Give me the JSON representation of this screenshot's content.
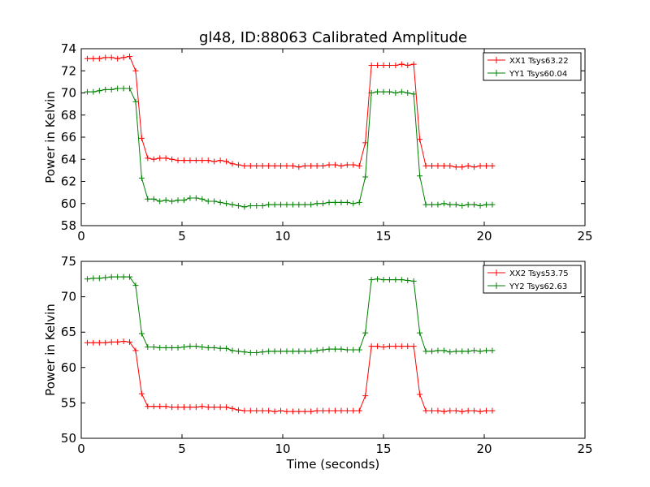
{
  "title": "gl48, ID:88063 Calibrated Amplitude",
  "chart_data": [
    {
      "type": "line",
      "ylabel": "Power in Kelvin",
      "xlabel": "",
      "xlim": [
        0,
        25
      ],
      "ylim": [
        58,
        74
      ],
      "xticks": [
        "0",
        "5",
        "10",
        "15",
        "20",
        "25"
      ],
      "yticks": [
        "58",
        "60",
        "62",
        "64",
        "66",
        "68",
        "70",
        "72",
        "74"
      ],
      "legend_position": "top-right",
      "grid": false,
      "series": [
        {
          "name": "XX1 Tsys63.22",
          "color": "#ff0000",
          "x": [
            0.3,
            0.6,
            0.9,
            1.2,
            1.5,
            1.8,
            2.1,
            2.4,
            2.7,
            3.0,
            3.3,
            3.6,
            3.9,
            4.2,
            4.5,
            4.8,
            5.1,
            5.4,
            5.7,
            6.0,
            6.3,
            6.6,
            6.9,
            7.2,
            7.5,
            7.8,
            8.1,
            8.4,
            8.7,
            9.0,
            9.3,
            9.6,
            9.9,
            10.2,
            10.5,
            10.8,
            11.1,
            11.4,
            11.7,
            12.0,
            12.3,
            12.6,
            12.9,
            13.2,
            13.5,
            13.8,
            14.1,
            14.4,
            14.7,
            15.0,
            15.3,
            15.6,
            15.9,
            16.2,
            16.5,
            16.8,
            17.1,
            17.4,
            17.7,
            18.0,
            18.3,
            18.6,
            18.9,
            19.2,
            19.5,
            19.8,
            20.1,
            20.4
          ],
          "y": [
            73.1,
            73.1,
            73.1,
            73.2,
            73.2,
            73.1,
            73.2,
            73.3,
            72.0,
            65.9,
            64.1,
            64.0,
            64.1,
            64.1,
            64.0,
            63.9,
            63.9,
            63.9,
            63.9,
            63.9,
            63.9,
            63.8,
            63.9,
            63.8,
            63.6,
            63.5,
            63.4,
            63.4,
            63.4,
            63.4,
            63.4,
            63.4,
            63.4,
            63.4,
            63.4,
            63.3,
            63.4,
            63.4,
            63.4,
            63.4,
            63.5,
            63.5,
            63.4,
            63.5,
            63.5,
            63.4,
            65.5,
            72.5,
            72.5,
            72.5,
            72.5,
            72.5,
            72.6,
            72.5,
            72.6,
            65.8,
            63.4,
            63.4,
            63.4,
            63.4,
            63.4,
            63.3,
            63.3,
            63.4,
            63.3,
            63.4,
            63.4,
            63.4
          ]
        },
        {
          "name": "YY1 Tsys60.04",
          "color": "#008000",
          "x": [
            0.3,
            0.6,
            0.9,
            1.2,
            1.5,
            1.8,
            2.1,
            2.4,
            2.7,
            3.0,
            3.3,
            3.6,
            3.9,
            4.2,
            4.5,
            4.8,
            5.1,
            5.4,
            5.7,
            6.0,
            6.3,
            6.6,
            6.9,
            7.2,
            7.5,
            7.8,
            8.1,
            8.4,
            8.7,
            9.0,
            9.3,
            9.6,
            9.9,
            10.2,
            10.5,
            10.8,
            11.1,
            11.4,
            11.7,
            12.0,
            12.3,
            12.6,
            12.9,
            13.2,
            13.5,
            13.8,
            14.1,
            14.4,
            14.7,
            15.0,
            15.3,
            15.6,
            15.9,
            16.2,
            16.5,
            16.8,
            17.1,
            17.4,
            17.7,
            18.0,
            18.3,
            18.6,
            18.9,
            19.2,
            19.5,
            19.8,
            20.1,
            20.4
          ],
          "y": [
            70.1,
            70.1,
            70.2,
            70.3,
            70.3,
            70.4,
            70.4,
            70.4,
            69.2,
            62.3,
            60.4,
            60.4,
            60.2,
            60.3,
            60.2,
            60.3,
            60.3,
            60.5,
            60.5,
            60.4,
            60.2,
            60.2,
            60.1,
            60.0,
            59.9,
            59.8,
            59.7,
            59.8,
            59.8,
            59.8,
            59.9,
            59.9,
            59.9,
            59.9,
            59.9,
            59.9,
            59.9,
            59.9,
            60.0,
            60.0,
            60.1,
            60.1,
            60.1,
            60.1,
            60.0,
            60.1,
            62.4,
            70.0,
            70.1,
            70.1,
            70.1,
            70.0,
            70.1,
            70.0,
            69.9,
            62.5,
            59.9,
            59.9,
            59.9,
            60.0,
            59.9,
            59.9,
            59.8,
            59.9,
            59.9,
            59.8,
            59.9,
            59.9
          ]
        }
      ]
    },
    {
      "type": "line",
      "ylabel": "Power in Kelvin",
      "xlabel": "Time (seconds)",
      "xlim": [
        0,
        25
      ],
      "ylim": [
        50,
        75
      ],
      "xticks": [
        "0",
        "5",
        "10",
        "15",
        "20",
        "25"
      ],
      "yticks": [
        "50",
        "55",
        "60",
        "65",
        "70",
        "75"
      ],
      "legend_position": "top-right",
      "grid": false,
      "series": [
        {
          "name": "XX2 Tsys53.75",
          "color": "#ff0000",
          "x": [
            0.3,
            0.6,
            0.9,
            1.2,
            1.5,
            1.8,
            2.1,
            2.4,
            2.7,
            3.0,
            3.3,
            3.6,
            3.9,
            4.2,
            4.5,
            4.8,
            5.1,
            5.4,
            5.7,
            6.0,
            6.3,
            6.6,
            6.9,
            7.2,
            7.5,
            7.8,
            8.1,
            8.4,
            8.7,
            9.0,
            9.3,
            9.6,
            9.9,
            10.2,
            10.5,
            10.8,
            11.1,
            11.4,
            11.7,
            12.0,
            12.3,
            12.6,
            12.9,
            13.2,
            13.5,
            13.8,
            14.1,
            14.4,
            14.7,
            15.0,
            15.3,
            15.6,
            15.9,
            16.2,
            16.5,
            16.8,
            17.1,
            17.4,
            17.7,
            18.0,
            18.3,
            18.6,
            18.9,
            19.2,
            19.5,
            19.8,
            20.1,
            20.4
          ],
          "y": [
            63.5,
            63.5,
            63.5,
            63.5,
            63.6,
            63.6,
            63.7,
            63.6,
            62.4,
            56.3,
            54.5,
            54.5,
            54.5,
            54.5,
            54.4,
            54.4,
            54.4,
            54.4,
            54.4,
            54.5,
            54.4,
            54.4,
            54.4,
            54.4,
            54.2,
            54.0,
            53.9,
            53.9,
            53.9,
            53.9,
            53.9,
            53.8,
            53.9,
            53.8,
            53.8,
            53.8,
            53.8,
            53.8,
            53.9,
            53.9,
            53.9,
            53.9,
            53.9,
            53.9,
            53.9,
            53.9,
            56.0,
            63.0,
            63.0,
            62.9,
            63.0,
            63.0,
            63.0,
            63.0,
            63.0,
            56.2,
            53.9,
            53.9,
            53.9,
            53.8,
            53.9,
            53.9,
            53.8,
            53.9,
            53.9,
            53.8,
            53.9,
            53.9
          ]
        },
        {
          "name": "YY2 Tsys62.63",
          "color": "#008000",
          "x": [
            0.3,
            0.6,
            0.9,
            1.2,
            1.5,
            1.8,
            2.1,
            2.4,
            2.7,
            3.0,
            3.3,
            3.6,
            3.9,
            4.2,
            4.5,
            4.8,
            5.1,
            5.4,
            5.7,
            6.0,
            6.3,
            6.6,
            6.9,
            7.2,
            7.5,
            7.8,
            8.1,
            8.4,
            8.7,
            9.0,
            9.3,
            9.6,
            9.9,
            10.2,
            10.5,
            10.8,
            11.1,
            11.4,
            11.7,
            12.0,
            12.3,
            12.6,
            12.9,
            13.2,
            13.5,
            13.8,
            14.1,
            14.4,
            14.7,
            15.0,
            15.3,
            15.6,
            15.9,
            16.2,
            16.5,
            16.8,
            17.1,
            17.4,
            17.7,
            18.0,
            18.3,
            18.6,
            18.9,
            19.2,
            19.5,
            19.8,
            20.1,
            20.4
          ],
          "y": [
            72.5,
            72.6,
            72.6,
            72.7,
            72.8,
            72.8,
            72.8,
            72.8,
            71.6,
            64.8,
            62.9,
            62.9,
            62.8,
            62.8,
            62.8,
            62.8,
            62.9,
            63.0,
            63.0,
            62.9,
            62.8,
            62.8,
            62.7,
            62.7,
            62.4,
            62.3,
            62.2,
            62.1,
            62.1,
            62.2,
            62.3,
            62.3,
            62.3,
            62.3,
            62.3,
            62.3,
            62.3,
            62.3,
            62.4,
            62.5,
            62.6,
            62.6,
            62.6,
            62.5,
            62.5,
            62.5,
            64.9,
            72.4,
            72.5,
            72.4,
            72.4,
            72.4,
            72.4,
            72.3,
            72.2,
            64.9,
            62.3,
            62.3,
            62.4,
            62.4,
            62.2,
            62.3,
            62.3,
            62.3,
            62.4,
            62.3,
            62.4,
            62.4
          ]
        }
      ]
    }
  ]
}
